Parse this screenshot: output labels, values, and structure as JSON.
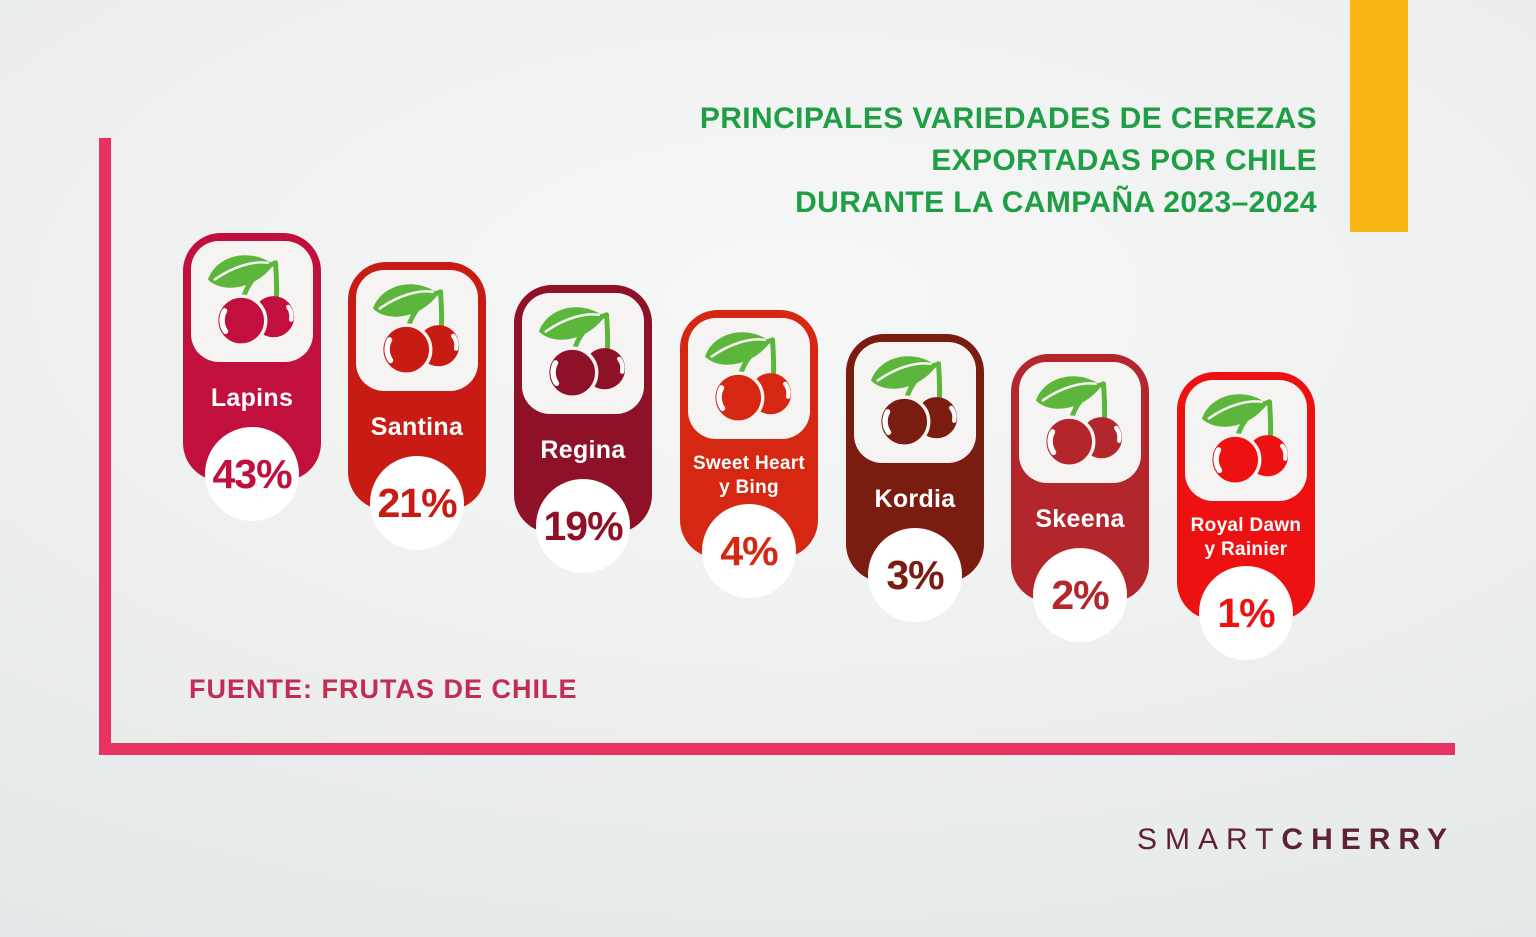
{
  "title": {
    "lines": [
      "PRINCIPALES VARIEDADES DE CEREZAS",
      "EXPORTADAS POR CHILE",
      "DURANTE LA CAMPAÑA 2023–2024"
    ],
    "color": "#1f9e45"
  },
  "source": {
    "label": "FUENTE: FRUTAS DE CHILE",
    "color": "#c32c55"
  },
  "logo": {
    "part1": "SMART",
    "part2": "CHERRY",
    "color": "#5e2230"
  },
  "decor": {
    "axis_color": "#e83261",
    "accent_bar_color": "#fbb615",
    "leaf_green": "#5cb63c",
    "icon": "cherries-icon"
  },
  "cards": [
    {
      "label_lines": [
        "Lapins"
      ],
      "value": "43%",
      "color": "#c2103e"
    },
    {
      "label_lines": [
        "Santina"
      ],
      "value": "21%",
      "color": "#c81b14"
    },
    {
      "label_lines": [
        "Regina"
      ],
      "value": "19%",
      "color": "#8e1128"
    },
    {
      "label_lines": [
        "Sweet Heart",
        "y Bing"
      ],
      "value": "4%",
      "color": "#d52711"
    },
    {
      "label_lines": [
        "Kordia"
      ],
      "value": "3%",
      "color": "#7b1c10"
    },
    {
      "label_lines": [
        "Skeena"
      ],
      "value": "2%",
      "color": "#b3262c"
    },
    {
      "label_lines": [
        "Royal Dawn",
        "y Rainier"
      ],
      "value": "1%",
      "color": "#ee1111"
    }
  ],
  "chart_data": {
    "type": "bar",
    "categories": [
      "Lapins",
      "Santina",
      "Regina",
      "Sweet Heart y Bing",
      "Kordia",
      "Skeena",
      "Royal Dawn y Rainier"
    ],
    "values": [
      43,
      21,
      19,
      4,
      3,
      2,
      1
    ],
    "unit": "%",
    "title": "Principales variedades de cerezas exportadas por Chile durante la campaña 2023–2024",
    "xlabel": "",
    "ylabel": "",
    "legend": "none",
    "grid": false,
    "source": "FUENTE: FRUTAS DE CHILE",
    "series_colors": [
      "#c2103e",
      "#c81b14",
      "#8e1128",
      "#d52711",
      "#7b1c10",
      "#b3262c",
      "#ee1111"
    ]
  }
}
